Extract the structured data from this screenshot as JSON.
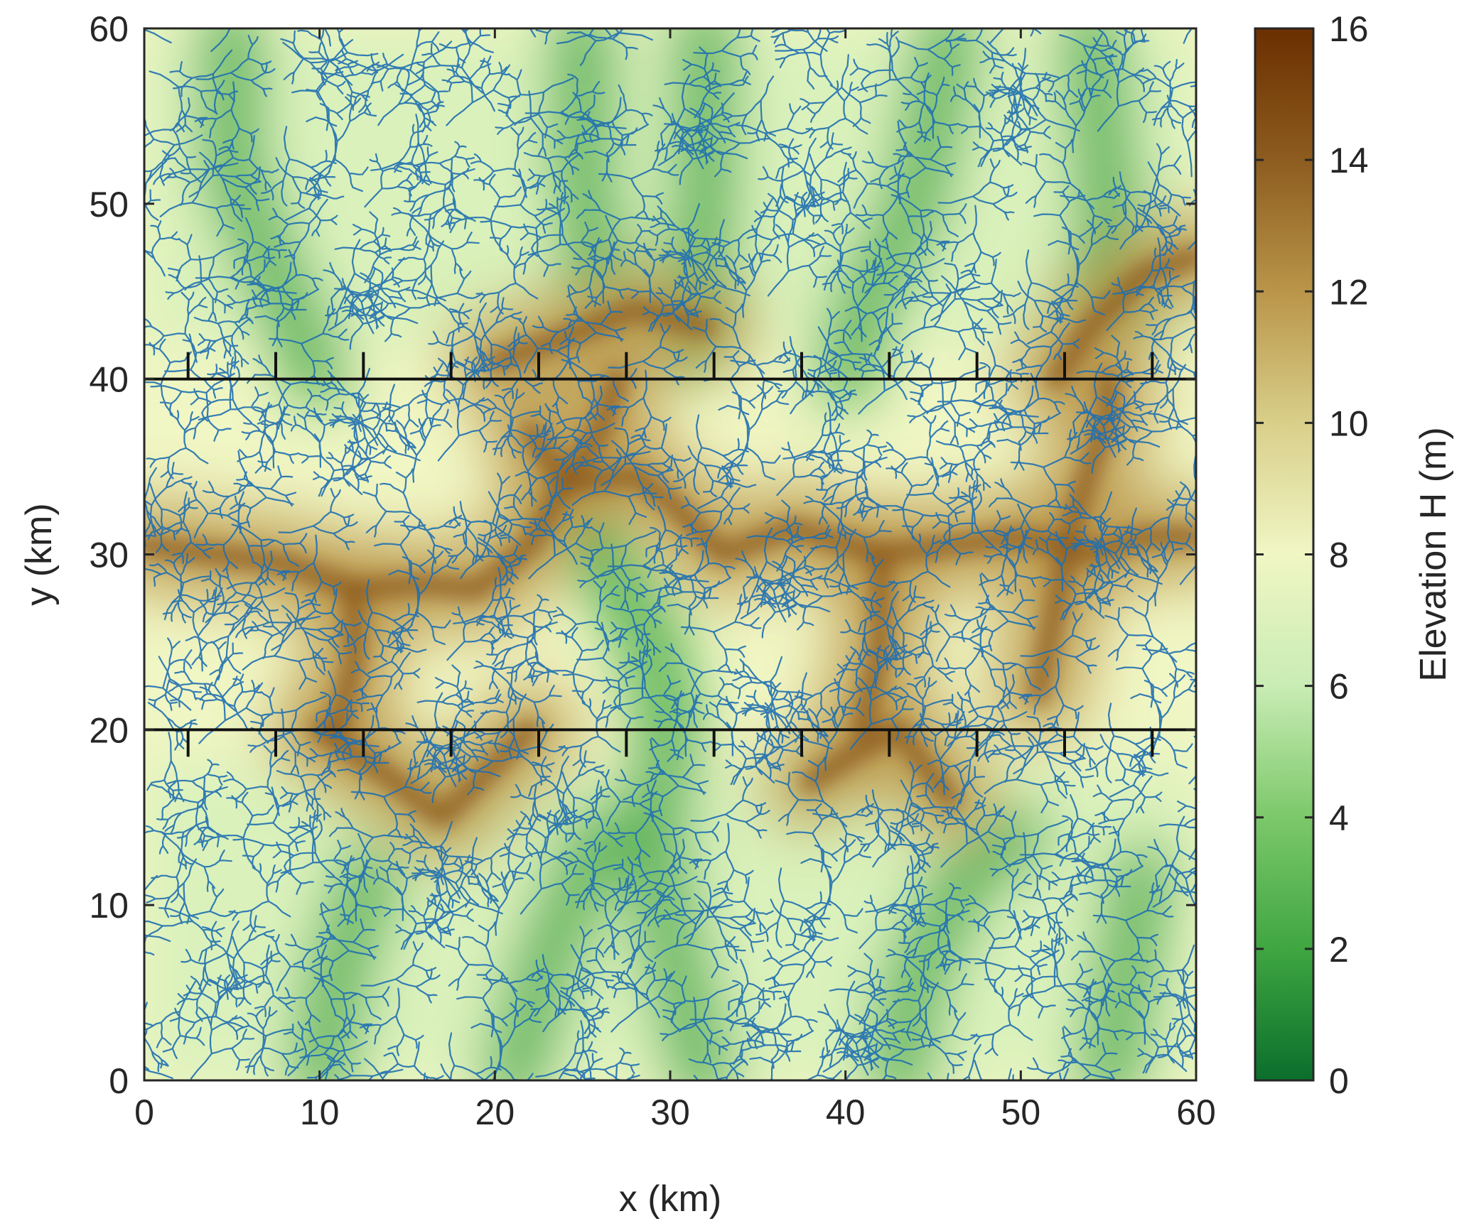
{
  "chart_data": {
    "type": "heatmap",
    "title": "",
    "xlabel": "x (km)",
    "ylabel": "y (km)",
    "xlim": [
      0,
      60
    ],
    "ylim": [
      0,
      60
    ],
    "xticks": [
      "0",
      "10",
      "20",
      "30",
      "40",
      "50",
      "60"
    ],
    "yticks": [
      "0",
      "10",
      "20",
      "30",
      "40",
      "50",
      "60"
    ],
    "colorbar": {
      "label": "Elevation H (m)",
      "range": [
        0,
        16
      ],
      "ticks": [
        "0",
        "2",
        "4",
        "6",
        "8",
        "10",
        "12",
        "14",
        "16"
      ],
      "colors": [
        "#0b6e2c",
        "#3fa641",
        "#7cc86a",
        "#c9ecb5",
        "#f0f6c4",
        "#d9cf8a",
        "#b99549",
        "#8d5c1f",
        "#6b2f00"
      ]
    },
    "boundary_lines_y": [
      20,
      40
    ],
    "boundary_tick_x": [
      2.5,
      7.5,
      12.5,
      17.5,
      22.5,
      27.5,
      32.5,
      37.5,
      42.5,
      47.5,
      52.5,
      57.5
    ],
    "ridges": [
      {
        "name": "central-ridge",
        "points": [
          [
            0,
            30.5
          ],
          [
            4,
            30
          ],
          [
            8,
            29.5
          ],
          [
            12,
            28
          ],
          [
            16,
            28.3
          ],
          [
            19,
            28
          ],
          [
            22,
            30.5
          ],
          [
            24,
            34
          ],
          [
            28,
            34.5
          ],
          [
            30,
            33
          ],
          [
            33,
            30
          ],
          [
            37,
            31.5
          ],
          [
            42,
            30
          ],
          [
            46,
            30.5
          ],
          [
            50,
            31
          ],
          [
            54,
            30
          ],
          [
            57,
            31
          ],
          [
            60,
            31
          ]
        ]
      },
      {
        "name": "south-ridge",
        "points": [
          [
            10,
            20
          ],
          [
            13,
            18
          ],
          [
            17,
            15
          ],
          [
            19,
            17
          ],
          [
            22,
            20
          ]
        ]
      },
      {
        "name": "south-ridge-2",
        "points": [
          [
            38,
            17
          ],
          [
            41,
            19
          ],
          [
            43,
            20
          ],
          [
            46,
            16
          ]
        ]
      },
      {
        "name": "north-ridge",
        "points": [
          [
            20,
            41
          ],
          [
            23,
            42
          ],
          [
            28,
            44
          ],
          [
            32,
            43
          ]
        ]
      },
      {
        "name": "north-ridge-2",
        "points": [
          [
            52,
            40
          ],
          [
            54,
            43
          ],
          [
            57,
            46
          ],
          [
            60,
            47
          ]
        ]
      },
      {
        "name": "ridge-spur-1",
        "points": [
          [
            11,
            20
          ],
          [
            12,
            24
          ],
          [
            12,
            28
          ]
        ]
      },
      {
        "name": "ridge-spur-2",
        "points": [
          [
            22,
            37
          ],
          [
            24,
            34
          ],
          [
            26,
            37
          ],
          [
            27,
            40
          ]
        ]
      },
      {
        "name": "ridge-spur-3",
        "points": [
          [
            41,
            20
          ],
          [
            42,
            25
          ],
          [
            42,
            30
          ]
        ]
      },
      {
        "name": "ridge-spur-4",
        "points": [
          [
            51,
            22
          ],
          [
            52,
            27
          ],
          [
            53,
            32
          ],
          [
            55,
            38
          ],
          [
            55,
            40
          ]
        ]
      }
    ],
    "valleys": [
      {
        "name": "valley-1",
        "points": [
          [
            5,
            60
          ],
          [
            5,
            52
          ],
          [
            7,
            47
          ],
          [
            10,
            40
          ]
        ]
      },
      {
        "name": "valley-2",
        "points": [
          [
            25,
            60
          ],
          [
            25,
            52
          ],
          [
            26,
            45
          ]
        ]
      },
      {
        "name": "valley-3",
        "points": [
          [
            32,
            60
          ],
          [
            32,
            50
          ],
          [
            31,
            42
          ]
        ]
      },
      {
        "name": "valley-4",
        "points": [
          [
            46,
            60
          ],
          [
            44,
            50
          ],
          [
            41,
            44
          ],
          [
            40,
            40
          ]
        ]
      },
      {
        "name": "valley-5",
        "points": [
          [
            54,
            60
          ],
          [
            55,
            50
          ],
          [
            55,
            44
          ]
        ]
      },
      {
        "name": "valley-6",
        "points": [
          [
            10,
            0
          ],
          [
            11,
            6
          ],
          [
            13,
            12
          ]
        ]
      },
      {
        "name": "valley-7",
        "points": [
          [
            21,
            0
          ],
          [
            23,
            7
          ],
          [
            26,
            14
          ]
        ]
      },
      {
        "name": "valley-8",
        "points": [
          [
            32,
            0
          ],
          [
            30,
            8
          ],
          [
            29,
            14
          ],
          [
            30,
            20
          ],
          [
            29,
            25
          ],
          [
            25,
            32
          ]
        ]
      },
      {
        "name": "valley-9",
        "points": [
          [
            43,
            0
          ],
          [
            44,
            6
          ],
          [
            47,
            12
          ],
          [
            50,
            14
          ]
        ]
      },
      {
        "name": "valley-10",
        "points": [
          [
            55,
            0
          ],
          [
            56,
            6
          ],
          [
            57,
            12
          ]
        ]
      }
    ]
  }
}
